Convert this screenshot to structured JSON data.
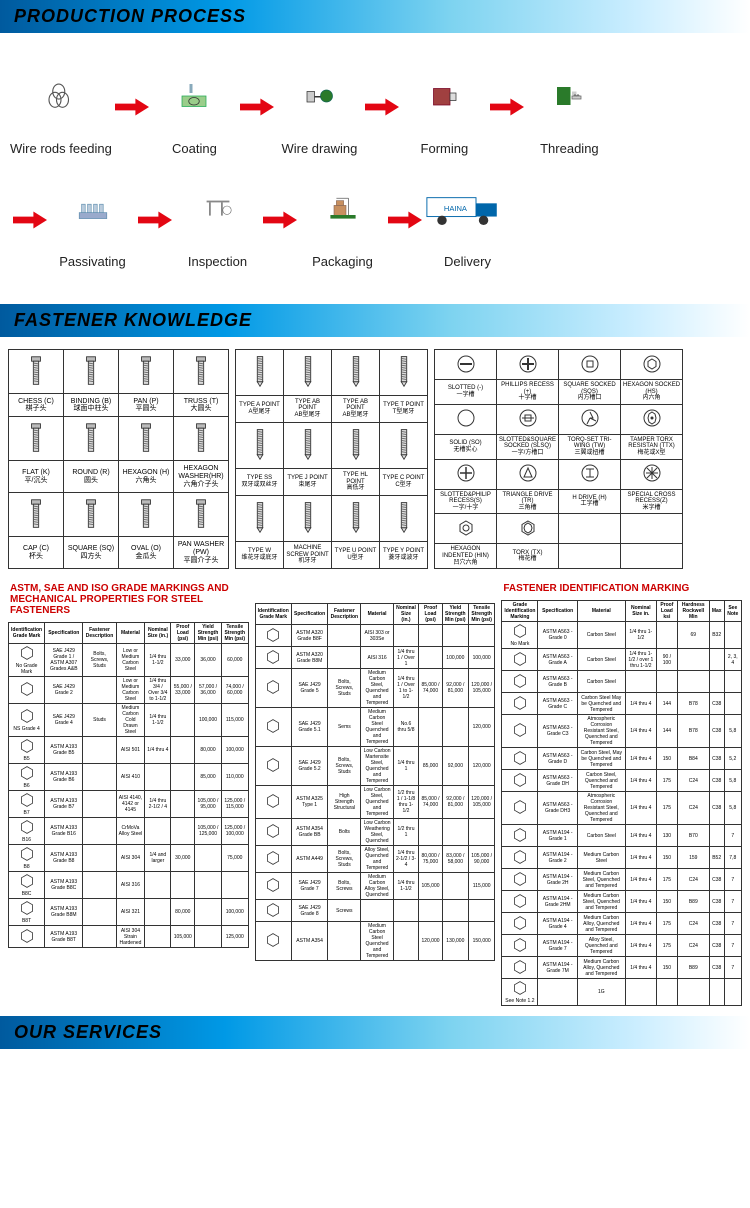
{
  "header1": "PRODUCTION PROCESS",
  "header2": "FASTENER KNOWLEDGE",
  "header3": "OUR SERVICES",
  "process": {
    "row1": [
      {
        "label": "Wire rods feeding"
      },
      {
        "label": "Coating"
      },
      {
        "label": "Wire drawing"
      },
      {
        "label": "Forming"
      },
      {
        "label": "Threading"
      }
    ],
    "row2": [
      {
        "label": "Passivating"
      },
      {
        "label": "Inspection"
      },
      {
        "label": "Packaging"
      },
      {
        "label": "Delivery"
      }
    ],
    "arrow_color": "#e30613",
    "truck_brand": "HAINA"
  },
  "heads": {
    "rows": [
      [
        {
          "en": "CHESS (C)",
          "cn": "棋子头"
        },
        {
          "en": "BINDING (B)",
          "cn": "球面中柱头"
        },
        {
          "en": "PAN (P)",
          "cn": "平圆头"
        },
        {
          "en": "TRUSS (T)",
          "cn": "大圆头"
        }
      ],
      [
        {
          "en": "FLAT (K)",
          "cn": "平/沉头"
        },
        {
          "en": "ROUND (R)",
          "cn": "圆头"
        },
        {
          "en": "HEXAGON (H)",
          "cn": "六角头"
        },
        {
          "en": "HEXAGON WASHER(HR)",
          "cn": "六角介子头"
        }
      ],
      [
        {
          "en": "CAP (C)",
          "cn": "杯头"
        },
        {
          "en": "SQUARE (SQ)",
          "cn": "四方头"
        },
        {
          "en": "OVAL (O)",
          "cn": "金瓜头"
        },
        {
          "en": "PAN WASHER (PW)",
          "cn": "平圆介子头"
        }
      ]
    ]
  },
  "points": {
    "rows": [
      [
        {
          "en": "TYPE A POINT",
          "cn": "A型尾牙"
        },
        {
          "en": "TYPE AB POINT",
          "cn": "AB型尾牙"
        },
        {
          "en": "TYPE AB POINT",
          "cn": "AB型尾牙"
        },
        {
          "en": "TYPE T POINT",
          "cn": "T型尾牙"
        }
      ],
      [
        {
          "en": "TYPE SS",
          "cn": "双牙或双丝牙"
        },
        {
          "en": "TYPE J POINT",
          "cn": "束尾牙"
        },
        {
          "en": "TYPE HL POINT",
          "cn": "高低牙"
        },
        {
          "en": "TYPE C POINT",
          "cn": "C型牙"
        }
      ],
      [
        {
          "en": "TYPE W",
          "cn": "维花牙或底牙"
        },
        {
          "en": "MACHINE SCREW POINT",
          "cn": "机牙牙"
        },
        {
          "en": "TYPE U POINT",
          "cn": "U型牙"
        },
        {
          "en": "TYPE Y POINT",
          "cn": "菱牙或波牙"
        }
      ]
    ]
  },
  "drives": {
    "rows": [
      [
        {
          "en": "SLOTTED (-)",
          "cn": "一字槽"
        },
        {
          "en": "PHILLIPS RECESS (+)",
          "cn": "十字槽"
        },
        {
          "en": "SQUARE SOCKED (SQS)",
          "cn": "内方槽口"
        },
        {
          "en": "HEXAGON SOCKED (HS)",
          "cn": "内六角"
        }
      ],
      [
        {
          "en": "SOLID (SO)",
          "cn": "无槽实心"
        },
        {
          "en": "SLOTTED&SQUARE SOCKED (SLSQ)",
          "cn": "一字/方槽口"
        },
        {
          "en": "TORQ-SET TRI-WING (TW)",
          "cn": "三翼或扭槽"
        },
        {
          "en": "TAMPER TORX RESISTAN (TTX)",
          "cn": "梅花或X型"
        }
      ],
      [
        {
          "en": "SLOTTED&PHILIP RECESS(S)",
          "cn": "一字/十字"
        },
        {
          "en": "TRIANGLE DRIVE (TR)",
          "cn": "三角槽"
        },
        {
          "en": "H DRIVE (H)",
          "cn": "工字槽"
        },
        {
          "en": "SPECIAL CROSS RECESS(Z)",
          "cn": "米字槽"
        }
      ],
      [
        {
          "en": "HEXAGON INDENTED (HIN)",
          "cn": "凹穴六角"
        },
        {
          "en": "TORX (TX)",
          "cn": "梅花槽"
        },
        {
          "en": "",
          "cn": ""
        },
        {
          "en": "",
          "cn": ""
        }
      ]
    ]
  },
  "mech_left": {
    "title": "ASTM, SAE AND ISO GRADE MARKINGS AND MECHANICAL PROPERTIES FOR STEEL FASTENERS",
    "headers": [
      "Identification Grade Mark",
      "Specification",
      "Fastener Description",
      "Material",
      "Nominal Size (in.)",
      "Proof Load (psi)",
      "Yield Strength Min (psi)",
      "Tensile Strength Min (psi)"
    ],
    "rows": [
      [
        "No Grade Mark",
        "SAE J429 Grade 1 / ASTM A307 Grades A&B",
        "Bolts, Screws, Studs",
        "Low or Medium Carbon Steel",
        "1/4 thru 1-1/2",
        "33,000",
        "36,000",
        "60,000"
      ],
      [
        "",
        "SAE J429 Grade 2",
        "",
        "Low or Medium Carbon Steel",
        "1/4 thru 3/4 / Over 3/4 to 1-1/2",
        "55,000 / 33,000",
        "57,000 / 36,000",
        "74,000 / 60,000"
      ],
      [
        "NS Grade 4",
        "SAE J429 Grade 4",
        "Studs",
        "Medium Carbon Cold Drawn Steel",
        "1/4 thru 1-1/2",
        "",
        "100,000",
        "115,000"
      ],
      [
        "B5",
        "ASTM A193 Grade B5",
        "",
        "AISI 501",
        "1/4 thru 4",
        "",
        "80,000",
        "100,000"
      ],
      [
        "B6",
        "ASTM A193 Grade B6",
        "",
        "AISI 410",
        "",
        "",
        "85,000",
        "110,000"
      ],
      [
        "B7",
        "ASTM A193 Grade B7",
        "",
        "AISI 4140, 4142 or 4145",
        "1/4 thru 2-1/2 / 4",
        "",
        "105,000 / 95,000",
        "125,000 / 115,000"
      ],
      [
        "B16",
        "ASTM A193 Grade B16",
        "",
        "CrMoVa Alloy Steel",
        "",
        "",
        "105,000 / 125,000",
        "125,000 / 100,000"
      ],
      [
        "B8",
        "ASTM A193 Grade B8",
        "",
        "AISI 304",
        "1/4 and larger",
        "30,000",
        "",
        "75,000"
      ],
      [
        "B8C",
        "ASTM A193 Grade B8C",
        "",
        "AISI 316",
        "",
        "",
        "",
        ""
      ],
      [
        "B8T",
        "ASTM A193 Grade B8M",
        "",
        "AISI 321",
        "",
        "80,000",
        "",
        "100,000"
      ],
      [
        "",
        "ASTM A193 Grade B8T",
        "",
        "AISI 304 Strain Hardened",
        "",
        "105,000",
        "",
        "125,000"
      ]
    ]
  },
  "mech_mid": {
    "rows": [
      [
        "",
        "ASTM A320 Grade B8F",
        "",
        "AISI 303 or 303Se",
        "",
        "",
        "",
        ""
      ],
      [
        "",
        "ASTM A320 Grade B8M",
        "",
        "AISI 316",
        "1/4 thru 1 / Over 1",
        "",
        "100,000",
        "100,000"
      ],
      [
        "",
        "SAE J429 Grade 5",
        "Bolts, Screws, Studs",
        "Medium Carbon Steel, Quenched and Tempered",
        "1/4 thru 1 / Over 1 to 1-1/2",
        "85,000 / 74,000",
        "92,000 / 81,000",
        "120,000 / 105,000"
      ],
      [
        "",
        "SAE J429 Grade 5.1",
        "Sems",
        "Medium Carbon Steel Quenched and Tempered",
        "No.6 thru 5/8",
        "",
        "",
        "120,000"
      ],
      [
        "",
        "SAE J429 Grade 5.2",
        "Bolts, Screws, Studs",
        "Low Carbon Martensite Steel, Quenched and Tempered",
        "1/4 thru 1",
        "85,000",
        "92,000",
        "120,000"
      ],
      [
        "",
        "ASTM A325 Type 1",
        "High Strength Structural",
        "Low Carbon Steel, Quenched and Tempered",
        "1/2 thru 1 / 1-1/8 thru 1-1/2",
        "85,000 / 74,000",
        "92,000 / 81,000",
        "120,000 / 105,000"
      ],
      [
        "",
        "ASTM A354 Grade BB",
        "Bolts",
        "Low Carbon Weathering Steel, Quenched",
        "1/2 thru 1",
        "",
        "",
        ""
      ],
      [
        "",
        "ASTM A449",
        "Bolts, Screws, Studs",
        "Alloy Steel, Quenched and Tempered",
        "1/4 thru 2-1/2 / 3-4",
        "80,000 / 75,000",
        "83,000 / 58,000",
        "105,000 / 90,000"
      ],
      [
        "",
        "SAE J429 Grade 7",
        "Bolts, Screws",
        "Medium Carbon Alloy Steel, Quenched",
        "1/4 thru 1-1/2",
        "105,000",
        "",
        "115,000"
      ],
      [
        "",
        "SAE J429 Grade 8",
        "Screws",
        "",
        "",
        "",
        "",
        ""
      ],
      [
        "",
        "ASTM A354",
        "",
        "Medium Carbon Steel Quenched and Tempered",
        "",
        "120,000",
        "130,000",
        "150,000"
      ]
    ]
  },
  "mech_right": {
    "title": "FASTENER IDENTIFICATION MARKING",
    "headers": [
      "Grade Identification Marking",
      "Specification",
      "Material",
      "Nominal Size in.",
      "Proof Load ksi",
      "Hardness Rockwell Min",
      "Max",
      "See Note"
    ],
    "rows": [
      [
        "No Mark",
        "ASTM A563 - Grade 0",
        "Carbon Steel",
        "1/4 thru 1-1/2",
        "",
        "69",
        "B32",
        ""
      ],
      [
        "",
        "ASTM A563 - Grade A",
        "Carbon Steel",
        "1/4 thru 1-1/2 / over 1 thru 1-1/2",
        "90 / 100",
        "",
        "",
        "2, 3, 4"
      ],
      [
        "",
        "ASTM A563 - Grade B",
        "Carbon Steel",
        "",
        "",
        "",
        "",
        ""
      ],
      [
        "",
        "ASTM A563 - Grade C",
        "Carbon Steel May be Quenched and Tempered",
        "1/4 thru 4",
        "144",
        "B78",
        "C38",
        ""
      ],
      [
        "",
        "ASTM A563 - Grade C3",
        "Atmospheric Corrosion Resistant Steel, Quenched and Tempered",
        "1/4 thru 4",
        "144",
        "B78",
        "C38",
        "5,8"
      ],
      [
        "",
        "ASTM A563 - Grade D",
        "Carbon Steel, May be Quenched and Tempered",
        "1/4 thru 4",
        "150",
        "B84",
        "C38",
        "5,2"
      ],
      [
        "",
        "ASTM A563 - Grade DH",
        "Carbon Steel, Quenched and Tempered",
        "1/4 thru 4",
        "175",
        "C24",
        "C38",
        "5,8"
      ],
      [
        "",
        "ASTM A563 - Grade DH3",
        "Atmospheric Corrosion Resistant Steel, Quenched and Tempered",
        "1/4 thru 4",
        "175",
        "C24",
        "C38",
        "5,8"
      ],
      [
        "",
        "ASTM A194 - Grade 1",
        "Carbon Steel",
        "1/4 thru 4",
        "130",
        "B70",
        "",
        "7"
      ],
      [
        "",
        "ASTM A194 - Grade 2",
        "Medium Carbon Steel",
        "1/4 thru 4",
        "150",
        "159",
        "B52",
        "7,8"
      ],
      [
        "",
        "ASTM A194 - Grade 2H",
        "Medium Carbon Steel, Quenched and Tempered",
        "1/4 thru 4",
        "175",
        "C24",
        "C38",
        "7"
      ],
      [
        "",
        "ASTM A194 - Grade 2HM",
        "Medium Carbon Steel, Quenched and Tempered",
        "1/4 thru 4",
        "150",
        "B89",
        "C38",
        "7"
      ],
      [
        "",
        "ASTM A194 - Grade 4",
        "Medium Carbon Alloy, Quenched and Tempered",
        "1/4 thru 4",
        "175",
        "C24",
        "C38",
        "7"
      ],
      [
        "",
        "ASTM A194 - Grade 7",
        "Alloy Steel, Quenched and Tempered",
        "1/4 thru 4",
        "175",
        "C24",
        "C38",
        "7"
      ],
      [
        "",
        "ASTM A194 - Grade 7M",
        "Medium Carbon Alloy, Quenched and Tempered",
        "1/4 thru 4",
        "150",
        "B89",
        "C38",
        "7"
      ],
      [
        "See Note 1.2",
        "",
        "1G",
        "",
        "",
        "",
        "",
        ""
      ]
    ]
  }
}
